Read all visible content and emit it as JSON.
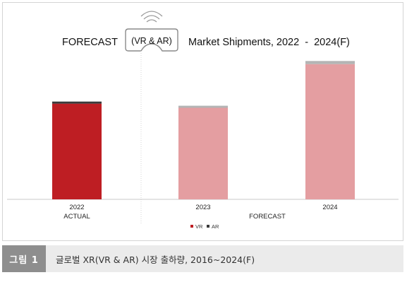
{
  "chart_data": {
    "type": "bar",
    "title_left": "FORECAST",
    "title_badge": "(VR & AR)",
    "title_right": "Market Shipments, 2022  -  2024(F)",
    "categories": [
      "2022",
      "2023",
      "2024"
    ],
    "category_sublabels": [
      "ACTUAL",
      "FORECAST"
    ],
    "stacked": true,
    "series": [
      {
        "name": "VR",
        "values": [
          9.2,
          8.8,
          13.0
        ]
      },
      {
        "name": "AR",
        "values": [
          0.2,
          0.2,
          0.3
        ]
      }
    ],
    "ylim": [
      0,
      14
    ],
    "colors": {
      "actual_vr": "#be1e23",
      "actual_ar": "#3a3a3a",
      "forecast_vr": "#e49ea1",
      "forecast_ar": "#b4b4b4"
    },
    "legend": {
      "position": "bottom-center",
      "items": [
        "VR",
        "AR"
      ]
    }
  },
  "caption": {
    "badge": "그림 1",
    "text": "글로벌 XR(VR & AR) 시장 출하량, 2016~2024(F)"
  }
}
